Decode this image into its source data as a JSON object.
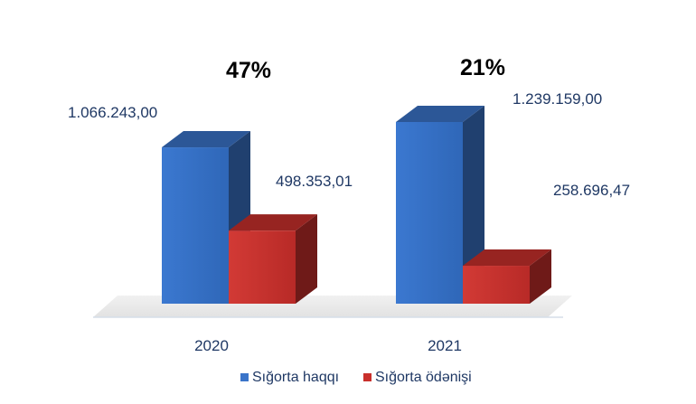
{
  "chart_data": {
    "type": "bar",
    "categories": [
      "2020",
      "2021"
    ],
    "series": [
      {
        "name": "Sığorta haqqı",
        "color": "#3a74c9",
        "values": [
          1066243.0,
          1239159.0
        ],
        "labels": [
          "1.066.243,00",
          "1.239.159,00"
        ]
      },
      {
        "name": "Sığorta ödənişi",
        "color": "#c9302c",
        "values": [
          498353.01,
          258696.47
        ],
        "labels": [
          "498.353,01",
          "258.696,47"
        ]
      }
    ],
    "annotations": [
      "47%",
      "21%"
    ],
    "title": "",
    "xlabel": "",
    "ylabel": "",
    "ylim": [
      0,
      1400000
    ],
    "style": "3d",
    "grid": false,
    "legend_position": "bottom"
  }
}
